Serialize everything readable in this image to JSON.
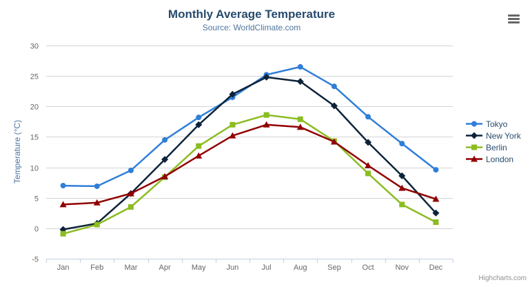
{
  "header": {
    "title": "Monthly Average Temperature",
    "subtitle": "Source: WorldClimate.com"
  },
  "menu": {
    "context_button": "chart-context-menu"
  },
  "credits": {
    "label": "Highcharts.com"
  },
  "chart_data": {
    "type": "line",
    "title": "Monthly Average Temperature",
    "subtitle": "Source: WorldClimate.com",
    "xlabel": "",
    "ylabel": "Temperature (°C)",
    "categories": [
      "Jan",
      "Feb",
      "Mar",
      "Apr",
      "May",
      "Jun",
      "Jul",
      "Aug",
      "Sep",
      "Oct",
      "Nov",
      "Dec"
    ],
    "series": [
      {
        "name": "Tokyo",
        "color": "#2f7ed8",
        "marker": "circle",
        "values": [
          7.0,
          6.9,
          9.5,
          14.5,
          18.2,
          21.5,
          25.2,
          26.5,
          23.3,
          18.3,
          13.9,
          9.6
        ]
      },
      {
        "name": "New York",
        "color": "#0d233a",
        "marker": "diamond",
        "values": [
          -0.2,
          0.8,
          5.7,
          11.3,
          17.0,
          22.0,
          24.8,
          24.1,
          20.1,
          14.1,
          8.6,
          2.5
        ]
      },
      {
        "name": "Berlin",
        "color": "#8bbc21",
        "marker": "square",
        "values": [
          -0.9,
          0.6,
          3.5,
          8.4,
          13.5,
          17.0,
          18.6,
          17.9,
          14.3,
          9.0,
          3.9,
          1.0
        ]
      },
      {
        "name": "London",
        "color": "#910000",
        "marker": "triangle",
        "values": [
          3.9,
          4.2,
          5.7,
          8.5,
          11.9,
          15.2,
          17.0,
          16.6,
          14.2,
          10.3,
          6.6,
          4.8
        ]
      }
    ],
    "ylim": [
      -5,
      30
    ],
    "yticks": [
      -5,
      0,
      5,
      10,
      15,
      20,
      25,
      30
    ],
    "grid": true,
    "legend_position": "right"
  },
  "colors": {
    "grid": "#d3d3d3",
    "axis_line": "#c0d0e0",
    "tick_label": "#666666",
    "title": "#274b6d",
    "subtitle": "#4d759e",
    "axis_title": "#4d759e",
    "credits": "#909090"
  }
}
